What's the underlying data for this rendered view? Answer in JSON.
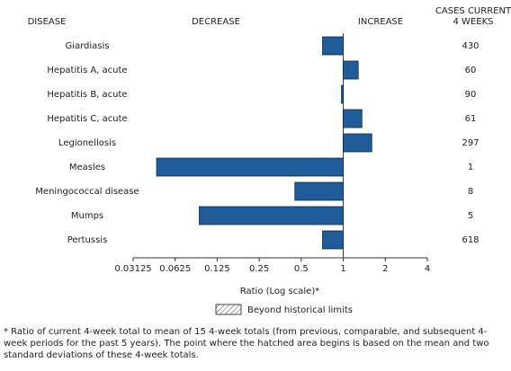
{
  "chart_data": {
    "type": "bar",
    "orientation": "horizontal",
    "category_header": "DISEASE",
    "decrease_label": "DECREASE",
    "increase_label": "INCREASE",
    "cases_header": [
      "CASES CURRENT",
      "4 WEEKS"
    ],
    "categories": [
      "Giardiasis",
      "Hepatitis A, acute",
      "Hepatitis B, acute",
      "Hepatitis C, acute",
      "Legionellosis",
      "Measles",
      "Meningococcal disease",
      "Mumps",
      "Pertussis"
    ],
    "values": [
      0.71,
      1.28,
      0.97,
      1.36,
      1.6,
      0.046,
      0.45,
      0.093,
      0.71
    ],
    "cases": [
      430,
      60,
      90,
      61,
      297,
      1,
      8,
      5,
      618
    ],
    "color": "#1f5c99",
    "xlim": [
      0.03125,
      4
    ],
    "xticks": [
      0.03125,
      0.0625,
      0.125,
      0.25,
      0.5,
      1,
      2,
      4
    ],
    "log_scale": true,
    "xlabel": "Ratio (Log scale)*",
    "legend_label": "Beyond historical limits",
    "footnote": "* Ratio of current 4-week total to mean of 15 4-week totals (from previous, comparable, and subsequent 4-week periods for the past 5 years). The point where the hatched area begins is based on the mean and two standard deviations of these 4-week totals."
  }
}
